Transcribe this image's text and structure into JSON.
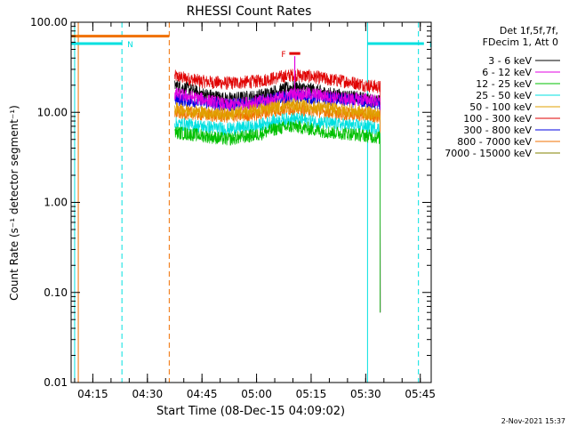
{
  "chart_data": {
    "type": "line",
    "title": "RHESSI Count Rates",
    "xlabel": "Start Time (08-Dec-15 04:09:02)",
    "ylabel": "Count Rate (s⁻¹ detector segment⁻¹)",
    "yscale": "log",
    "ylim": [
      0.01,
      100
    ],
    "xlim": [
      "04:09:02",
      "05:48:00"
    ],
    "x_ticks": [
      "04:15",
      "04:30",
      "04:45",
      "05:00",
      "05:15",
      "05:30",
      "05:45"
    ],
    "y_ticks": [
      "0.01",
      "0.10",
      "1.00",
      "10.00",
      "100.00"
    ],
    "legend_header": [
      "Det 1f,5f,7f,",
      "FDecim 1, Att 0"
    ],
    "legend_position": "right",
    "timestamp": "2-Nov-2021 15:37",
    "series": [
      {
        "name": "3 - 6 keV",
        "color": "#000000",
        "start": "04:37:30",
        "end": "05:34:00",
        "x": [
          "04:37:30",
          "04:45",
          "04:52",
          "05:00",
          "05:05",
          "05:10",
          "05:15",
          "05:20",
          "05:25",
          "05:30",
          "05:34"
        ],
        "y": [
          20,
          16,
          14,
          15,
          17,
          19,
          18,
          16,
          15,
          14,
          13
        ]
      },
      {
        "name": "6 - 12 keV",
        "color": "#e000e0",
        "start": "04:37:30",
        "end": "05:34:00",
        "x": [
          "04:37:30",
          "04:45",
          "04:52",
          "05:00",
          "05:05",
          "05:10",
          "05:15",
          "05:20",
          "05:25",
          "05:30",
          "05:34"
        ],
        "y": [
          16,
          14,
          12,
          13,
          14,
          16,
          16,
          15,
          14,
          14,
          13
        ]
      },
      {
        "name": "12 - 25 keV",
        "color": "#00c000",
        "start": "04:37:30",
        "end": "05:34:00",
        "x": [
          "04:37:30",
          "04:45",
          "04:52",
          "05:00",
          "05:05",
          "05:10",
          "05:15",
          "05:20",
          "05:25",
          "05:30",
          "05:34"
        ],
        "y": [
          6,
          5.5,
          5,
          5.6,
          6.5,
          7,
          6.5,
          6,
          5.8,
          5.5,
          5.2
        ]
      },
      {
        "name": "25 - 50 keV",
        "color": "#00e0e0",
        "start": "04:37:30",
        "end": "05:34:00",
        "x": [
          "04:37:30",
          "04:45",
          "04:52",
          "05:00",
          "05:05",
          "05:10",
          "05:15",
          "05:20",
          "05:25",
          "05:30",
          "05:34"
        ],
        "y": [
          7.5,
          7,
          6.5,
          7,
          8,
          8.5,
          8,
          7.5,
          7.2,
          7,
          6.5
        ]
      },
      {
        "name": "50 - 100 keV",
        "color": "#e0a000",
        "start": "04:37:30",
        "end": "05:34:00",
        "x": [
          "04:37:30",
          "04:45",
          "04:52",
          "05:00",
          "05:05",
          "05:10",
          "05:15",
          "05:20",
          "05:25",
          "05:30",
          "05:34"
        ],
        "y": [
          11,
          10,
          9.5,
          10.5,
          11.5,
          12,
          11.5,
          11,
          10.5,
          10,
          9.5
        ]
      },
      {
        "name": "100 - 300 keV",
        "color": "#e00000",
        "start": "04:37:30",
        "end": "05:34:00",
        "x": [
          "04:37:30",
          "04:45",
          "04:52",
          "05:00",
          "05:05",
          "05:10",
          "05:15",
          "05:20",
          "05:25",
          "05:30",
          "05:34"
        ],
        "y": [
          25,
          22,
          21,
          22,
          24,
          26,
          25,
          23,
          22,
          20,
          19
        ]
      },
      {
        "name": "300 - 800 keV",
        "color": "#0000e0",
        "start": "04:37:30",
        "end": "05:34:00",
        "x": [
          "04:37:30",
          "04:45",
          "04:52",
          "05:00",
          "05:05",
          "05:10",
          "05:15",
          "05:20",
          "05:25",
          "05:30",
          "05:34"
        ],
        "y": [
          14,
          13,
          12,
          13,
          14,
          15,
          14.5,
          14,
          13.5,
          13,
          12.5
        ]
      },
      {
        "name": "800 - 7000 keV",
        "color": "#f07000",
        "start": "04:37:30",
        "end": "05:34:00",
        "x": [
          "04:37:30",
          "04:45",
          "04:52",
          "05:00",
          "05:05",
          "05:10",
          "05:15",
          "05:20",
          "05:25",
          "05:30",
          "05:34"
        ],
        "y": [
          10,
          9.5,
          9,
          9.5,
          10.5,
          11,
          10.5,
          10,
          9.5,
          9.2,
          9
        ]
      },
      {
        "name": "7000 - 15000 keV",
        "color": "#808000",
        "start": "04:37:30",
        "end": "05:34:00",
        "x": [],
        "y": []
      }
    ],
    "markers": [
      {
        "label": "S",
        "color": "#f07000",
        "y": 70,
        "start": "04:09:02",
        "end": "04:36:00"
      },
      {
        "label": "N",
        "color": "#00e0e0",
        "y": 58,
        "start": "04:09:02",
        "end": "04:23:00"
      },
      {
        "label": "N",
        "color": "#00e0e0",
        "y": 58,
        "start": "05:30:30",
        "end": "05:46:00"
      },
      {
        "label": "F",
        "color": "#e00000",
        "y": 45,
        "start": "05:09:00",
        "end": "05:12:00"
      }
    ],
    "vertical_lines": [
      {
        "time": "04:10:00",
        "color": "#00e0e0",
        "style": "solid"
      },
      {
        "time": "04:11:00",
        "color": "#f07000",
        "style": "solid"
      },
      {
        "time": "04:23:00",
        "color": "#00e0e0",
        "style": "dashed"
      },
      {
        "time": "04:36:00",
        "color": "#f07000",
        "style": "dashed"
      },
      {
        "time": "05:30:30",
        "color": "#00e0e0",
        "style": "solid"
      },
      {
        "time": "05:44:30",
        "color": "#00e0e0",
        "style": "dashed"
      }
    ]
  }
}
